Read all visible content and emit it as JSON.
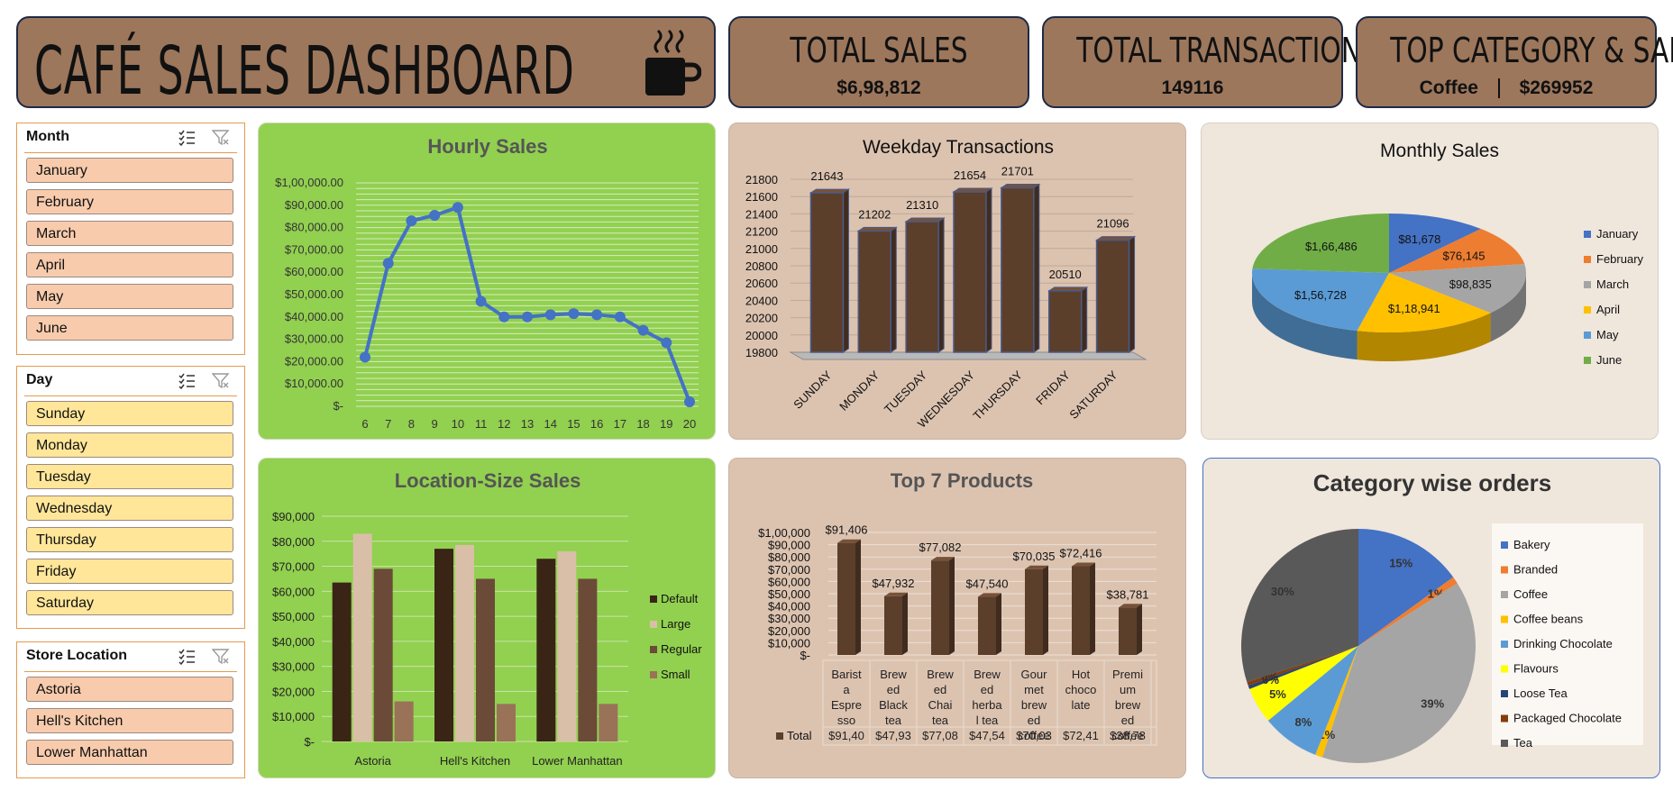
{
  "header": {
    "title": "CAFÉ SALES DASHBOARD",
    "icon": "coffee-cup-icon"
  },
  "kpis": [
    {
      "title": "TOTAL SALES",
      "value": "$6,98,812"
    },
    {
      "title": "TOTAL TRANSACTIONS",
      "value": "149116"
    },
    {
      "title": "TOP CATEGORY & SALE",
      "category": "Coffee",
      "sale": "$269952"
    }
  ],
  "slicers": {
    "month": {
      "title": "Month",
      "items": [
        "January",
        "February",
        "March",
        "April",
        "May",
        "June"
      ],
      "color": "#f8cbad"
    },
    "day": {
      "title": "Day",
      "items": [
        "Sunday",
        "Monday",
        "Tuesday",
        "Wednesday",
        "Thursday",
        "Friday",
        "Saturday"
      ],
      "color": "#ffe699"
    },
    "store": {
      "title": "Store Location",
      "items": [
        "Astoria",
        "Hell's Kitchen",
        "Lower Manhattan"
      ],
      "color": "#f8cbad"
    }
  },
  "chart_data": [
    {
      "id": "hourly",
      "type": "line",
      "title": "Hourly Sales",
      "x": [
        6,
        7,
        8,
        9,
        10,
        11,
        12,
        13,
        14,
        15,
        16,
        17,
        18,
        19,
        20
      ],
      "values": [
        22000,
        64000,
        83000,
        85500,
        89000,
        47000,
        40000,
        40000,
        41000,
        41500,
        41000,
        40000,
        34000,
        28500,
        2000
      ],
      "ylim": [
        0,
        100000
      ],
      "yticks": [
        "$-",
        "$10,000.00",
        "$20,000.00",
        "$30,000.00",
        "$40,000.00",
        "$50,000.00",
        "$60,000.00",
        "$70,000.00",
        "$80,000.00",
        "$90,000.00",
        "$1,00,000.00"
      ],
      "color": "#4472c4"
    },
    {
      "id": "weekday",
      "type": "bar",
      "title": "Weekday Transactions",
      "categories": [
        "SUNDAY",
        "MONDAY",
        "TUESDAY",
        "WEDNESDAY",
        "THURSDAY",
        "FRIDAY",
        "SATURDAY"
      ],
      "values": [
        21643,
        21202,
        21310,
        21654,
        21701,
        20510,
        21096
      ],
      "ylim": [
        19800,
        21800
      ],
      "yticks": [
        "19800",
        "20000",
        "20200",
        "20400",
        "20600",
        "20800",
        "21000",
        "21200",
        "21400",
        "21600",
        "21800"
      ],
      "color": "#5b3f2b"
    },
    {
      "id": "monthly",
      "type": "pie",
      "title": "Monthly Sales",
      "categories": [
        "January",
        "February",
        "March",
        "April",
        "May",
        "June"
      ],
      "values": [
        81678,
        76145,
        98835,
        118941,
        156728,
        166486
      ],
      "labels": [
        "$81,678",
        "$76,145",
        "$98,835",
        "$1,18,941",
        "$1,56,728",
        "$1,66,486"
      ],
      "colors": [
        "#4472c4",
        "#ed7d31",
        "#a5a5a5",
        "#ffc000",
        "#5b9bd5",
        "#70ad47"
      ],
      "legend": "right"
    },
    {
      "id": "location",
      "type": "bar",
      "title": "Location-Size Sales",
      "categories": [
        "Astoria",
        "Hell's Kitchen",
        "Lower Manhattan"
      ],
      "series": [
        {
          "name": "Default",
          "values": [
            63500,
            77000,
            73000
          ],
          "color": "#3a2416"
        },
        {
          "name": "Large",
          "values": [
            83000,
            78500,
            76000
          ],
          "color": "#d9bfa8"
        },
        {
          "name": "Regular",
          "values": [
            69000,
            65000,
            65000
          ],
          "color": "#6b4a38"
        },
        {
          "name": "Small",
          "values": [
            16000,
            15000,
            15000
          ],
          "color": "#9a7258"
        }
      ],
      "ylim": [
        0,
        90000
      ],
      "yticks": [
        "$-",
        "$10,000",
        "$20,000",
        "$30,000",
        "$40,000",
        "$50,000",
        "$60,000",
        "$70,000",
        "$80,000",
        "$90,000"
      ],
      "legend": "right"
    },
    {
      "id": "products",
      "type": "bar",
      "title": "Top 7 Products",
      "categories": [
        "Barista Espresso",
        "Brewed Black tea",
        "Brewed Chai tea",
        "Brewed herbal tea",
        "Gourmet brewed coffee",
        "Hot chocolate",
        "Premium brewed coffee"
      ],
      "category_lines": [
        [
          "Barist",
          "a",
          "Espre",
          "sso"
        ],
        [
          "Brew",
          "ed",
          "Black",
          "tea"
        ],
        [
          "Brew",
          "ed",
          "Chai",
          "tea"
        ],
        [
          "Brew",
          "ed",
          "herba",
          "l tea"
        ],
        [
          "Gour",
          "met",
          "brew",
          "ed",
          "coffee"
        ],
        [
          "Hot",
          "choco",
          "late"
        ],
        [
          "Premi",
          "um",
          "brew",
          "ed",
          "coffee"
        ]
      ],
      "values": [
        91406,
        47932,
        77082,
        47540,
        70035,
        72416,
        38781
      ],
      "labels": [
        "$91,406",
        "$47,932",
        "$77,082",
        "$47,540",
        "$70,035",
        "$72,416",
        "$38,781"
      ],
      "table_label": "Total",
      "table_values": [
        "$91,40",
        "$47,93",
        "$77,08",
        "$47,54",
        "$70,03",
        "$72,41",
        "$38,78"
      ],
      "ylim": [
        0,
        100000
      ],
      "yticks": [
        "$-",
        "$10,000",
        "$20,000",
        "$30,000",
        "$40,000",
        "$50,000",
        "$60,000",
        "$70,000",
        "$80,000",
        "$90,000",
        "$1,00,000"
      ],
      "color": "#5b3f2b"
    },
    {
      "id": "category",
      "type": "pie",
      "title": "Category wise orders",
      "categories": [
        "Bakery",
        "Branded",
        "Coffee",
        "Coffee beans",
        "Drinking Chocolate",
        "Flavours",
        "Loose Tea",
        "Packaged Chocolate",
        "Tea"
      ],
      "values": [
        15,
        1,
        39,
        1,
        8,
        5,
        0.5,
        0.5,
        30
      ],
      "labels": [
        "15%",
        "1%",
        "39%",
        "1%",
        "8%",
        "5%",
        "0%",
        "0%",
        "30%"
      ],
      "colors": [
        "#4472c4",
        "#ed7d31",
        "#a5a5a5",
        "#ffc000",
        "#5b9bd5",
        "#ffff00",
        "#264478",
        "#843c0c",
        "#595959"
      ],
      "legend": "right"
    }
  ]
}
